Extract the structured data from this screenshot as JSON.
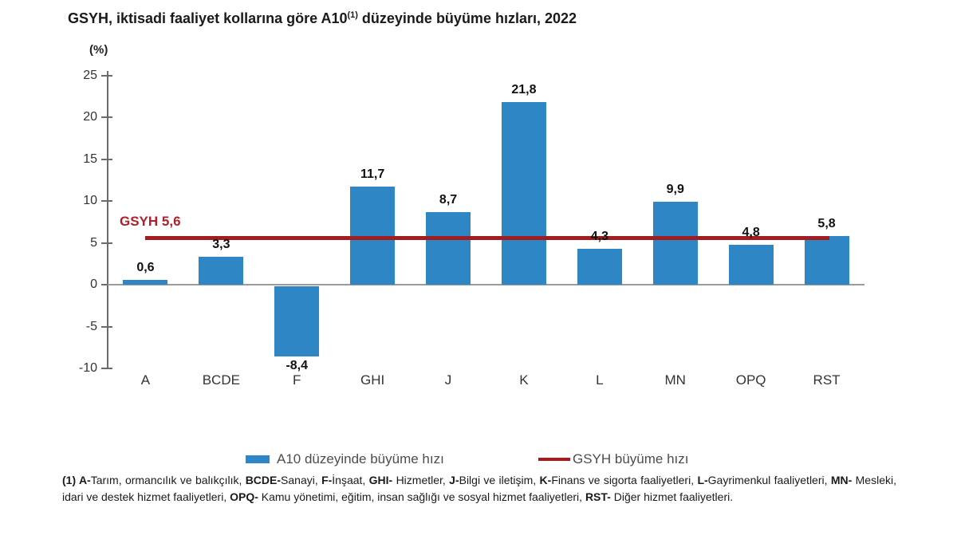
{
  "title": {
    "prefix": "GSYH, iktisadi faaliyet kollarına göre A10",
    "sup": "(1)",
    "suffix": " düzeyinde büyüme hızları, 2022"
  },
  "unit_label": "(%)",
  "chart_data": {
    "type": "bar",
    "title": "GSYH, iktisadi faaliyet kollarına göre A10(1) düzeyinde büyüme hızları, 2022",
    "categories": [
      "A",
      "BCDE",
      "F",
      "GHI",
      "J",
      "K",
      "L",
      "MN",
      "OPQ",
      "RST"
    ],
    "values": [
      0.6,
      3.3,
      -8.4,
      11.7,
      8.7,
      21.8,
      4.3,
      9.9,
      4.8,
      5.8
    ],
    "value_labels": [
      "0,6",
      "3,3",
      "-8,4",
      "11,7",
      "8,7",
      "21,8",
      "4,3",
      "9,9",
      "4,8",
      "5,8"
    ],
    "xlabel": "",
    "ylabel": "(%)",
    "ylim": [
      -10,
      25
    ],
    "ytick_step": 5,
    "yticks": [
      "25",
      "20",
      "15",
      "10",
      "5",
      "0",
      "-5",
      "-10"
    ],
    "grid": "off",
    "legend_position": "bottom",
    "reference_line": {
      "value": 5.6,
      "label": "GSYH 5,6"
    },
    "bar_color": "#2E86C5",
    "line_color": "#A01D20",
    "reference_label_color": "#B01E28"
  },
  "legend": {
    "bar": "A10 düzeyinde büyüme hızı",
    "line": "GSYH büyüme hızı"
  },
  "footnote_segments": [
    {
      "t": "(1) ",
      "b": true
    },
    {
      "t": "A-",
      "b": true
    },
    {
      "t": "Tarım, ormancılık ve balıkçılık, ",
      "b": false
    },
    {
      "t": "BCDE-",
      "b": true
    },
    {
      "t": "Sanayi, ",
      "b": false
    },
    {
      "t": "F-",
      "b": true
    },
    {
      "t": "İnşaat, ",
      "b": false
    },
    {
      "t": "GHI-",
      "b": true
    },
    {
      "t": " Hizmetler, ",
      "b": false
    },
    {
      "t": "J-",
      "b": true
    },
    {
      "t": "Bilgi ve iletişim, ",
      "b": false
    },
    {
      "t": "K-",
      "b": true
    },
    {
      "t": "Finans ve sigorta faaliyetleri, ",
      "b": false
    },
    {
      "t": "L-",
      "b": true
    },
    {
      "t": "Gayrimenkul faaliyetleri, ",
      "b": false
    },
    {
      "t": "MN-",
      "b": true
    },
    {
      "t": " Mesleki, idari ve destek hizmet faaliyetleri, ",
      "b": false
    },
    {
      "t": "OPQ-",
      "b": true
    },
    {
      "t": " Kamu yönetimi, eğitim, insan sağlığı ve sosyal hizmet faaliyetleri, ",
      "b": false
    },
    {
      "t": "RST-",
      "b": true
    },
    {
      "t": " Diğer hizmet faaliyetleri.",
      "b": false
    }
  ]
}
